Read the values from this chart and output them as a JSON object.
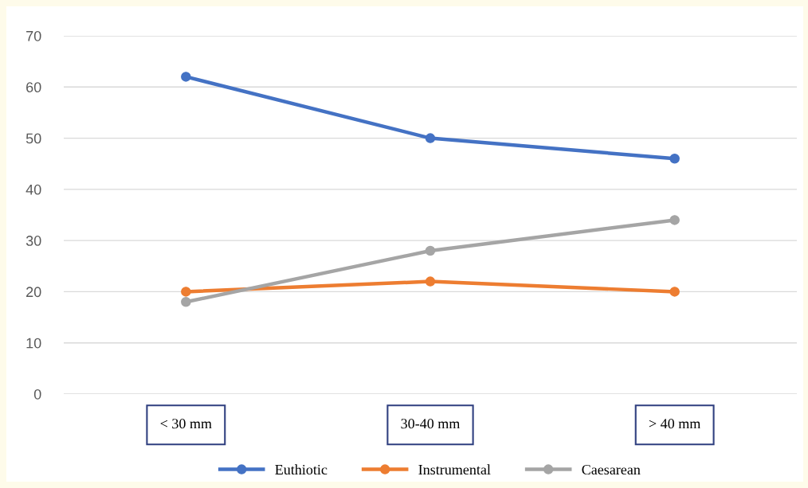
{
  "chart_data": {
    "type": "line",
    "categories": [
      "< 30 mm",
      "30-40 mm",
      "> 40 mm"
    ],
    "series": [
      {
        "name": "Euthiotic",
        "color": "#4472c4",
        "values": [
          62,
          50,
          46
        ]
      },
      {
        "name": "Instrumental",
        "color": "#ed7d31",
        "values": [
          20,
          22,
          20
        ]
      },
      {
        "name": "Caesarean",
        "color": "#a5a5a5",
        "values": [
          18,
          28,
          34
        ]
      }
    ],
    "ylim": [
      0,
      70
    ],
    "yticks": [
      0,
      10,
      20,
      30,
      40,
      50,
      60,
      70
    ],
    "grid": "y",
    "legend": "bottom",
    "marker": "circle",
    "line_style": "solid"
  }
}
